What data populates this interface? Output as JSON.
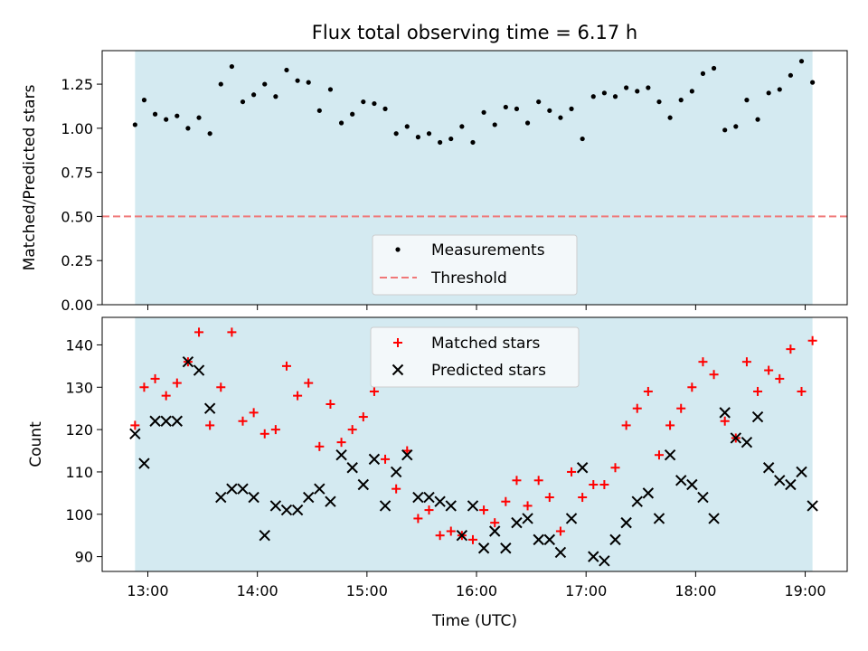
{
  "colors": {
    "shade": "#d4eaf1",
    "threshold": "#f07878",
    "matched": "#ff0000",
    "predicted": "#000000",
    "measurement": "#000000"
  },
  "chart_data": [
    {
      "type": "scatter",
      "title": "Flux total observing time = 6.17 h",
      "xlabel": "",
      "ylabel": "Matched/Predicted stars",
      "xlim": [
        "12:35",
        "19:23"
      ],
      "ylim": [
        0,
        1.44
      ],
      "x_ticks": [
        "13:00",
        "14:00",
        "15:00",
        "16:00",
        "17:00",
        "18:00",
        "19:00"
      ],
      "y_ticks": [
        "0.00",
        "0.25",
        "0.50",
        "0.75",
        "1.00",
        "1.25"
      ],
      "shaded_span": [
        "12:53",
        "19:04"
      ],
      "threshold": 0.5,
      "legend": [
        "Measurements",
        "Threshold"
      ],
      "legend_position": "lower center",
      "series": [
        {
          "name": "Measurements",
          "x": [
            "12:53",
            "12:58",
            "13:04",
            "13:10",
            "13:16",
            "13:22",
            "13:28",
            "13:34",
            "13:40",
            "13:46",
            "13:52",
            "13:58",
            "14:04",
            "14:10",
            "14:16",
            "14:22",
            "14:28",
            "14:34",
            "14:40",
            "14:46",
            "14:52",
            "14:58",
            "15:04",
            "15:10",
            "15:16",
            "15:22",
            "15:28",
            "15:34",
            "15:40",
            "15:46",
            "15:52",
            "15:58",
            "16:04",
            "16:10",
            "16:16",
            "16:22",
            "16:28",
            "16:34",
            "16:40",
            "16:46",
            "16:52",
            "16:58",
            "17:04",
            "17:10",
            "17:16",
            "17:22",
            "17:28",
            "17:34",
            "17:40",
            "17:46",
            "17:52",
            "17:58",
            "18:04",
            "18:10",
            "18:16",
            "18:22",
            "18:28",
            "18:34",
            "18:40",
            "18:46",
            "18:52",
            "18:58",
            "19:04"
          ],
          "values": [
            1.02,
            1.16,
            1.08,
            1.05,
            1.07,
            1.0,
            1.06,
            0.97,
            1.25,
            1.35,
            1.15,
            1.19,
            1.25,
            1.18,
            1.33,
            1.27,
            1.26,
            1.1,
            1.22,
            1.03,
            1.08,
            1.15,
            1.14,
            1.11,
            0.97,
            1.01,
            0.95,
            0.97,
            0.92,
            0.94,
            1.01,
            0.92,
            1.09,
            1.02,
            1.12,
            1.11,
            1.03,
            1.15,
            1.1,
            1.06,
            1.11,
            0.94,
            1.18,
            1.2,
            1.18,
            1.23,
            1.21,
            1.23,
            1.15,
            1.06,
            1.16,
            1.21,
            1.31,
            1.34,
            0.99,
            1.01,
            1.16,
            1.05,
            1.2,
            1.22,
            1.3,
            1.38,
            1.26
          ]
        }
      ]
    },
    {
      "type": "scatter",
      "title": "",
      "xlabel": "Time (UTC)",
      "ylabel": "Count",
      "xlim": [
        "12:35",
        "19:23"
      ],
      "ylim": [
        86.5,
        146.5
      ],
      "x_ticks": [
        "13:00",
        "14:00",
        "15:00",
        "16:00",
        "17:00",
        "18:00",
        "19:00"
      ],
      "y_ticks": [
        "90",
        "100",
        "110",
        "120",
        "130",
        "140"
      ],
      "shaded_span": [
        "12:53",
        "19:04"
      ],
      "legend": [
        "Matched stars",
        "Predicted stars"
      ],
      "legend_position": "upper center",
      "series": [
        {
          "name": "Matched stars",
          "x": [
            "12:53",
            "12:58",
            "13:04",
            "13:10",
            "13:16",
            "13:22",
            "13:28",
            "13:34",
            "13:40",
            "13:46",
            "13:52",
            "13:58",
            "14:04",
            "14:10",
            "14:16",
            "14:22",
            "14:28",
            "14:34",
            "14:40",
            "14:46",
            "14:52",
            "14:58",
            "15:04",
            "15:10",
            "15:16",
            "15:22",
            "15:28",
            "15:34",
            "15:40",
            "15:46",
            "15:52",
            "15:58",
            "16:04",
            "16:10",
            "16:16",
            "16:22",
            "16:28",
            "16:34",
            "16:40",
            "16:46",
            "16:52",
            "16:58",
            "17:04",
            "17:10",
            "17:16",
            "17:22",
            "17:28",
            "17:34",
            "17:40",
            "17:46",
            "17:52",
            "17:58",
            "18:04",
            "18:10",
            "18:16",
            "18:22",
            "18:28",
            "18:34",
            "18:40",
            "18:46",
            "18:52",
            "18:58",
            "19:04"
          ],
          "values": [
            121,
            130,
            132,
            128,
            131,
            136,
            143,
            121,
            130,
            143,
            122,
            124,
            119,
            120,
            135,
            128,
            131,
            116,
            126,
            117,
            120,
            123,
            129,
            113,
            106,
            115,
            99,
            101,
            95,
            96,
            95,
            94,
            101,
            98,
            103,
            108,
            102,
            108,
            104,
            96,
            110,
            104,
            107,
            107,
            111,
            121,
            125,
            129,
            114,
            121,
            125,
            130,
            136,
            133,
            122,
            118,
            136,
            129,
            134,
            132,
            139,
            129,
            141
          ]
        },
        {
          "name": "Predicted stars",
          "x": [
            "12:53",
            "12:58",
            "13:04",
            "13:10",
            "13:16",
            "13:22",
            "13:28",
            "13:34",
            "13:40",
            "13:46",
            "13:52",
            "13:58",
            "14:04",
            "14:10",
            "14:16",
            "14:22",
            "14:28",
            "14:34",
            "14:40",
            "14:46",
            "14:52",
            "14:58",
            "15:04",
            "15:10",
            "15:16",
            "15:22",
            "15:28",
            "15:34",
            "15:40",
            "15:46",
            "15:52",
            "15:58",
            "16:04",
            "16:10",
            "16:16",
            "16:22",
            "16:28",
            "16:34",
            "16:40",
            "16:46",
            "16:52",
            "16:58",
            "17:04",
            "17:10",
            "17:16",
            "17:22",
            "17:28",
            "17:34",
            "17:40",
            "17:46",
            "17:52",
            "17:58",
            "18:04",
            "18:10",
            "18:16",
            "18:22",
            "18:28",
            "18:34",
            "18:40",
            "18:46",
            "18:52",
            "18:58",
            "19:04"
          ],
          "values": [
            119,
            112,
            122,
            122,
            122,
            136,
            134,
            125,
            104,
            106,
            106,
            104,
            95,
            102,
            101,
            101,
            104,
            106,
            103,
            114,
            111,
            107,
            113,
            102,
            110,
            114,
            104,
            104,
            103,
            102,
            95,
            102,
            92,
            96,
            92,
            98,
            99,
            94,
            94,
            91,
            99,
            111,
            90,
            89,
            94,
            98,
            103,
            105,
            99,
            114,
            108,
            107,
            104,
            99,
            124,
            118,
            117,
            123,
            111,
            108,
            107,
            110,
            102
          ]
        }
      ]
    }
  ]
}
